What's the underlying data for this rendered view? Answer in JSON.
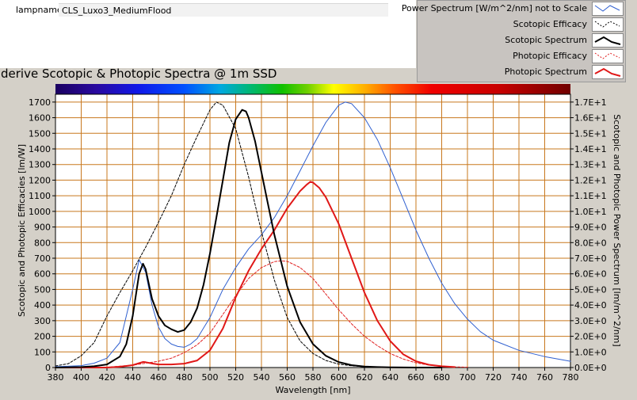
{
  "lamp": {
    "label": "lampname",
    "value": "CLS_Luxo3_MediumFlood"
  },
  "legend": [
    {
      "label": "Power Spectrum [W/m^2/nm] not to Scale",
      "color": "#3060d0",
      "dash": false,
      "thick": false
    },
    {
      "label": "Scotopic Efficacy",
      "color": "#000000",
      "dash": true,
      "thick": false
    },
    {
      "label": "Scotopic Spectrum",
      "color": "#000000",
      "dash": false,
      "thick": true
    },
    {
      "label": "Photopic Efficacy",
      "color": "#e02020",
      "dash": true,
      "thick": false
    },
    {
      "label": "Photopic Spectrum",
      "color": "#e01818",
      "dash": false,
      "thick": true
    }
  ],
  "chart_data": {
    "type": "line",
    "title": "derive Scotopic & Photopic Spectra @ 1m SSD",
    "xlabel": "Wavelength [nm]",
    "ylabel_left": "Scotopic and Photopic Efficacies [lm/W]",
    "ylabel_right": "Scotopic and Photopic Power Spectrum [lm/m^2/nm]",
    "xlim": [
      380,
      780
    ],
    "ylim_left": [
      0,
      1750
    ],
    "ylim_right": [
      0,
      17.5
    ],
    "grid": true,
    "legend_placement": "top-right",
    "x_ticks": [
      380,
      400,
      420,
      440,
      460,
      480,
      500,
      520,
      540,
      560,
      580,
      600,
      620,
      640,
      660,
      680,
      700,
      720,
      740,
      760,
      780
    ],
    "y_left_ticks": [
      0,
      100,
      200,
      300,
      400,
      500,
      600,
      700,
      800,
      900,
      1000,
      1100,
      1200,
      1300,
      1400,
      1500,
      1600,
      1700
    ],
    "y_right_tick_labels": [
      "0.0E+0",
      "1.0E+0",
      "2.0E+0",
      "3.0E+0",
      "4.0E+0",
      "5.0E+0",
      "6.0E+0",
      "7.0E+0",
      "8.0E+0",
      "9.0E+0",
      "1.0E+1",
      "1.1E+1",
      "1.2E+1",
      "1.3E+1",
      "1.4E+1",
      "1.5E+1",
      "1.6E+1",
      "1.7E+1"
    ],
    "series": [
      {
        "name": "Power Spectrum [W/m^2/nm] not to Scale",
        "color": "#3060d0",
        "width": 1,
        "dash": "",
        "x": [
          380,
          400,
          410,
          420,
          430,
          440,
          445,
          450,
          455,
          460,
          465,
          470,
          475,
          480,
          485,
          490,
          500,
          510,
          520,
          530,
          540,
          550,
          560,
          570,
          580,
          590,
          600,
          605,
          610,
          620,
          630,
          640,
          650,
          660,
          670,
          680,
          690,
          700,
          710,
          720,
          740,
          760,
          780
        ],
        "y": [
          5,
          12,
          28,
          60,
          160,
          500,
          690,
          610,
          400,
          260,
          185,
          150,
          135,
          130,
          150,
          185,
          320,
          500,
          640,
          760,
          850,
          960,
          1100,
          1260,
          1420,
          1570,
          1680,
          1700,
          1690,
          1600,
          1460,
          1280,
          1080,
          880,
          700,
          540,
          410,
          310,
          230,
          175,
          110,
          70,
          40
        ]
      },
      {
        "name": "Scotopic Efficacy",
        "color": "#000000",
        "width": 1,
        "dash": "3,2",
        "x": [
          380,
          390,
          400,
          410,
          420,
          430,
          440,
          450,
          460,
          470,
          480,
          490,
          500,
          505,
          510,
          520,
          530,
          540,
          550,
          560,
          570,
          580,
          590,
          600,
          610,
          620,
          640,
          660
        ],
        "y": [
          10,
          25,
          75,
          160,
          330,
          480,
          620,
          770,
          930,
          1100,
          1300,
          1480,
          1650,
          1700,
          1680,
          1530,
          1220,
          870,
          560,
          320,
          170,
          90,
          45,
          22,
          11,
          5,
          1,
          0
        ]
      },
      {
        "name": "Scotopic Spectrum",
        "color": "#000000",
        "width": 2,
        "dash": "",
        "x": [
          380,
          400,
          410,
          420,
          430,
          435,
          440,
          445,
          448,
          450,
          455,
          460,
          465,
          470,
          475,
          480,
          485,
          490,
          495,
          500,
          505,
          510,
          515,
          520,
          525,
          528,
          530,
          535,
          540,
          545,
          550,
          560,
          570,
          580,
          590,
          600,
          610,
          620,
          630,
          640,
          660,
          680
        ],
        "y": [
          0,
          3,
          8,
          20,
          70,
          150,
          330,
          600,
          665,
          630,
          440,
          330,
          270,
          245,
          228,
          240,
          290,
          380,
          530,
          730,
          960,
          1200,
          1440,
          1590,
          1650,
          1640,
          1600,
          1450,
          1250,
          1050,
          850,
          520,
          290,
          150,
          75,
          35,
          15,
          6,
          3,
          1,
          0,
          0
        ]
      },
      {
        "name": "Photopic Efficacy",
        "color": "#e02020",
        "width": 1,
        "dash": "3,2",
        "x": [
          380,
          400,
          420,
          440,
          460,
          470,
          480,
          490,
          500,
          510,
          520,
          530,
          540,
          550,
          555,
          560,
          570,
          580,
          590,
          600,
          610,
          620,
          630,
          640,
          650,
          660,
          670,
          680,
          690,
          700
        ],
        "y": [
          0,
          0,
          2,
          15,
          40,
          60,
          95,
          145,
          220,
          340,
          460,
          570,
          640,
          678,
          683,
          680,
          640,
          570,
          470,
          370,
          280,
          200,
          140,
          90,
          55,
          30,
          15,
          8,
          4,
          2
        ]
      },
      {
        "name": "Photopic Spectrum",
        "color": "#e01818",
        "width": 2,
        "dash": "",
        "x": [
          380,
          400,
          420,
          430,
          440,
          445,
          448,
          450,
          455,
          460,
          470,
          480,
          490,
          500,
          510,
          520,
          530,
          540,
          550,
          560,
          570,
          575,
          578,
          580,
          585,
          590,
          600,
          610,
          620,
          630,
          640,
          650,
          660,
          670,
          680,
          690
        ],
        "y": [
          0,
          0,
          0,
          5,
          15,
          28,
          36,
          34,
          26,
          20,
          20,
          25,
          45,
          110,
          250,
          450,
          620,
          760,
          880,
          1020,
          1130,
          1170,
          1190,
          1185,
          1150,
          1090,
          920,
          700,
          480,
          300,
          170,
          85,
          40,
          18,
          8,
          3
        ]
      }
    ]
  }
}
